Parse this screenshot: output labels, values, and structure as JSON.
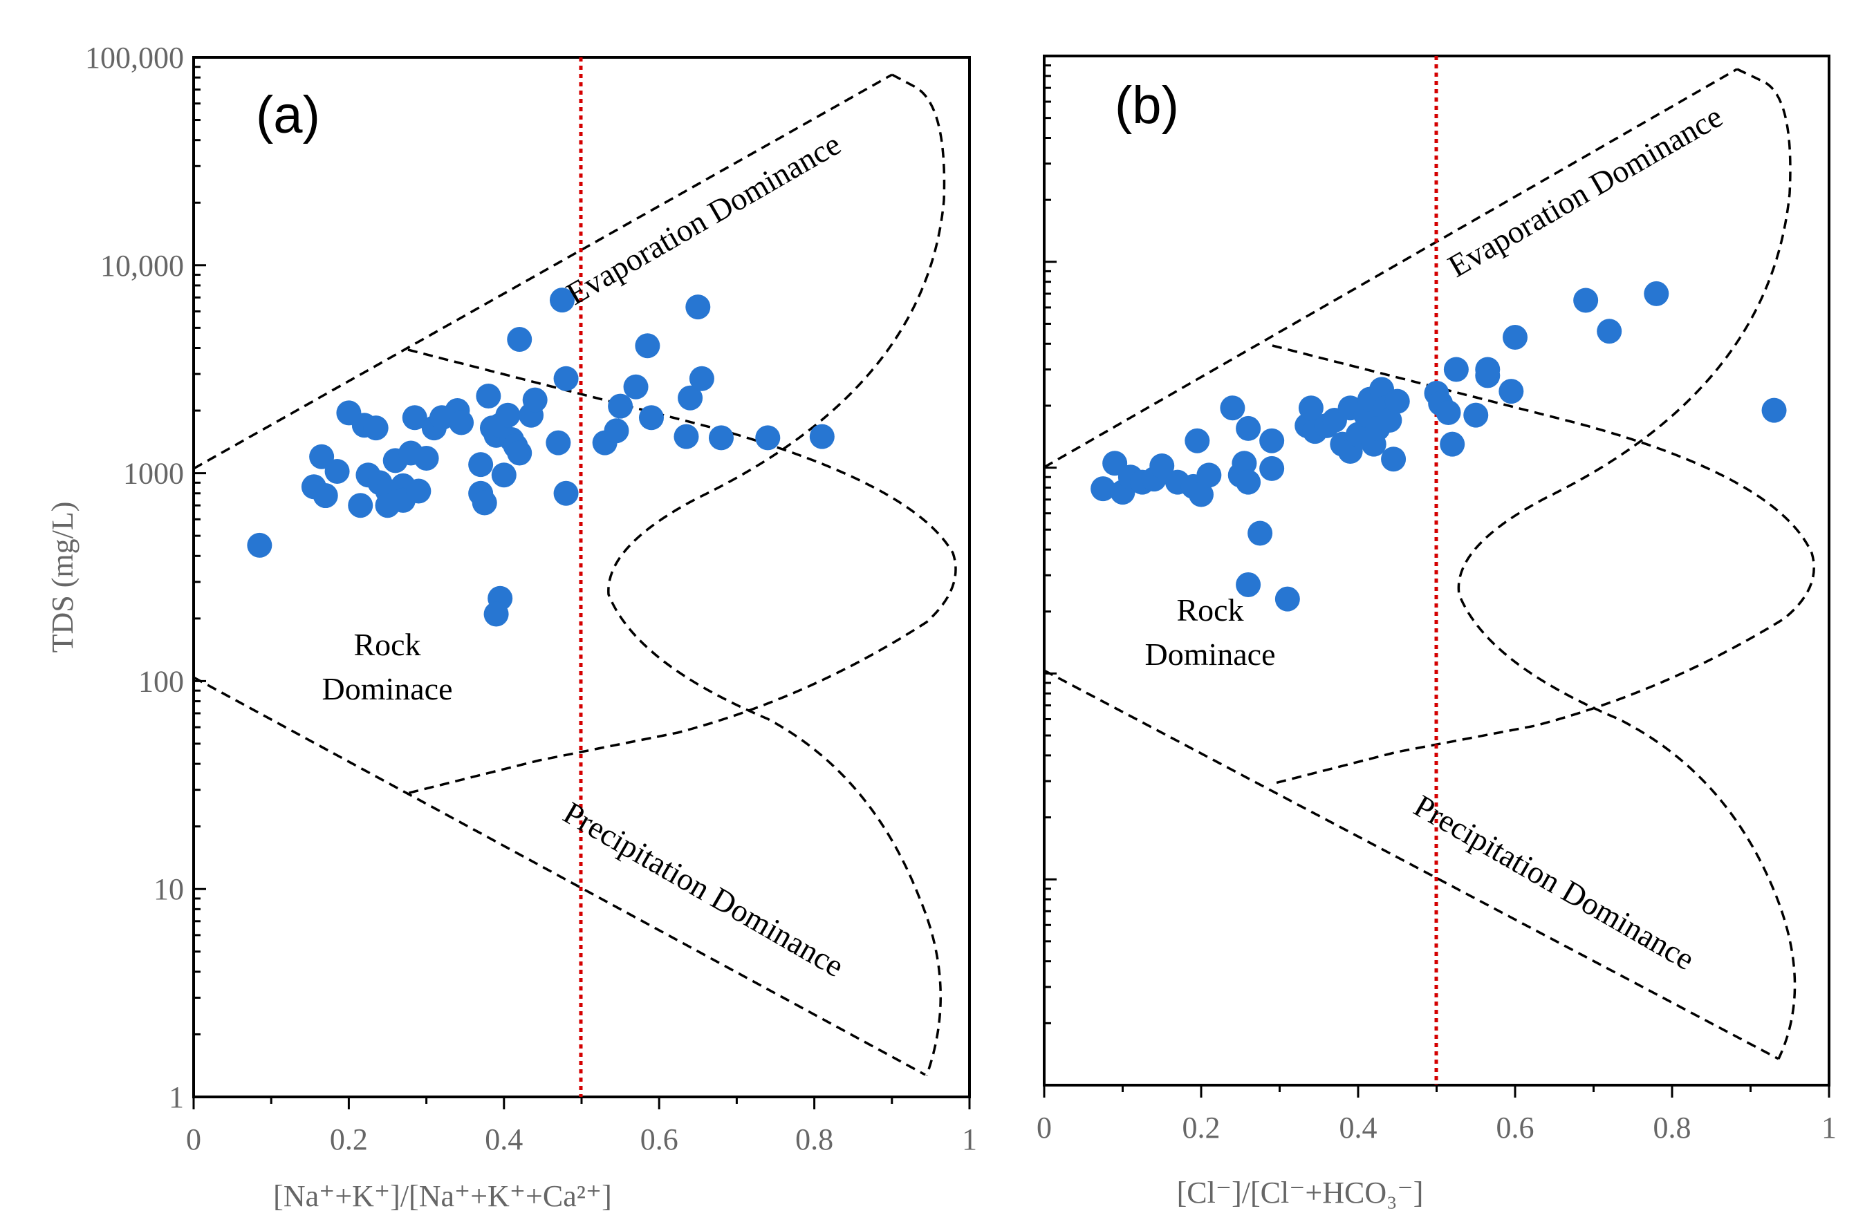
{
  "colors": {
    "point": "#2776d2",
    "threshold": "#d40000",
    "axis": "#000000",
    "tick_text": "#666666",
    "boundary": "#000000"
  },
  "chart_data": [
    {
      "type": "scatter",
      "panel_label": "(a)",
      "xlabel": "[Na⁺+K⁺]/[Na⁺+K⁺+Ca²⁺]",
      "ylabel": "TDS (mg/L)",
      "xlim": [
        0,
        1
      ],
      "ylim": [
        1,
        100000
      ],
      "yscale": "log",
      "x_ticks": [
        "0",
        "0.2",
        "0.4",
        "0.6",
        "0.8",
        "1"
      ],
      "y_ticks": [
        "1",
        "10",
        "100",
        "1000",
        "10,000",
        "100,000"
      ],
      "threshold_x": 0.5,
      "regions": [
        "Evaporation Dominance",
        "Rock",
        "Dominace",
        "Precipitation Dominance"
      ],
      "points": [
        [
          0.085,
          450
        ],
        [
          0.155,
          860
        ],
        [
          0.165,
          1200
        ],
        [
          0.17,
          780
        ],
        [
          0.185,
          1020
        ],
        [
          0.2,
          1950
        ],
        [
          0.215,
          700
        ],
        [
          0.22,
          1700
        ],
        [
          0.225,
          980
        ],
        [
          0.235,
          1650
        ],
        [
          0.24,
          900
        ],
        [
          0.25,
          820
        ],
        [
          0.25,
          700
        ],
        [
          0.26,
          1150
        ],
        [
          0.27,
          870
        ],
        [
          0.27,
          740
        ],
        [
          0.28,
          1250
        ],
        [
          0.285,
          1850
        ],
        [
          0.29,
          820
        ],
        [
          0.3,
          1180
        ],
        [
          0.31,
          1650
        ],
        [
          0.32,
          1850
        ],
        [
          0.34,
          2000
        ],
        [
          0.345,
          1750
        ],
        [
          0.37,
          1100
        ],
        [
          0.37,
          800
        ],
        [
          0.375,
          720
        ],
        [
          0.38,
          2350
        ],
        [
          0.385,
          1650
        ],
        [
          0.39,
          1520
        ],
        [
          0.395,
          1700
        ],
        [
          0.4,
          980
        ],
        [
          0.405,
          1900
        ],
        [
          0.41,
          1450
        ],
        [
          0.415,
          1350
        ],
        [
          0.42,
          1250
        ],
        [
          0.42,
          4400
        ],
        [
          0.435,
          1900
        ],
        [
          0.44,
          2250
        ],
        [
          0.47,
          1400
        ],
        [
          0.475,
          6800
        ],
        [
          0.48,
          2850
        ],
        [
          0.48,
          800
        ],
        [
          0.395,
          250
        ],
        [
          0.39,
          210
        ],
        [
          0.53,
          1400
        ],
        [
          0.545,
          1600
        ],
        [
          0.55,
          2100
        ],
        [
          0.57,
          2600
        ],
        [
          0.585,
          4100
        ],
        [
          0.59,
          1850
        ],
        [
          0.635,
          1500
        ],
        [
          0.64,
          2300
        ],
        [
          0.65,
          6300
        ],
        [
          0.655,
          2850
        ],
        [
          0.68,
          1480
        ],
        [
          0.74,
          1480
        ],
        [
          0.81,
          1500
        ]
      ]
    },
    {
      "type": "scatter",
      "panel_label": "(b)",
      "xlabel": "[Cl⁻]/[Cl⁻+HCO₃⁻]",
      "ylabel": "",
      "xlim": [
        0,
        1
      ],
      "ylim": [
        1,
        100000
      ],
      "yscale": "log",
      "x_ticks": [
        "0",
        "0.2",
        "0.4",
        "0.6",
        "0.8",
        "1"
      ],
      "y_ticks": [],
      "threshold_x": 0.5,
      "regions": [
        "Evaporation Dominance",
        "Rock",
        "Dominace",
        "Precipitation Dominance"
      ],
      "points": [
        [
          0.075,
          790
        ],
        [
          0.09,
          1050
        ],
        [
          0.1,
          760
        ],
        [
          0.11,
          900
        ],
        [
          0.125,
          850
        ],
        [
          0.14,
          880
        ],
        [
          0.15,
          1020
        ],
        [
          0.17,
          850
        ],
        [
          0.19,
          810
        ],
        [
          0.195,
          1350
        ],
        [
          0.2,
          740
        ],
        [
          0.21,
          920
        ],
        [
          0.24,
          1950
        ],
        [
          0.25,
          920
        ],
        [
          0.255,
          1050
        ],
        [
          0.26,
          850
        ],
        [
          0.26,
          1550
        ],
        [
          0.275,
          480
        ],
        [
          0.26,
          270
        ],
        [
          0.29,
          1350
        ],
        [
          0.29,
          990
        ],
        [
          0.31,
          230
        ],
        [
          0.335,
          1600
        ],
        [
          0.34,
          1950
        ],
        [
          0.345,
          1500
        ],
        [
          0.36,
          1600
        ],
        [
          0.37,
          1700
        ],
        [
          0.38,
          1300
        ],
        [
          0.39,
          1200
        ],
        [
          0.39,
          1950
        ],
        [
          0.4,
          1450
        ],
        [
          0.41,
          1800
        ],
        [
          0.415,
          2150
        ],
        [
          0.42,
          1300
        ],
        [
          0.425,
          1550
        ],
        [
          0.43,
          2400
        ],
        [
          0.435,
          1950
        ],
        [
          0.44,
          1700
        ],
        [
          0.445,
          1100
        ],
        [
          0.45,
          2100
        ],
        [
          0.5,
          2300
        ],
        [
          0.505,
          2050
        ],
        [
          0.515,
          1850
        ],
        [
          0.52,
          1300
        ],
        [
          0.525,
          3000
        ],
        [
          0.55,
          1800
        ],
        [
          0.565,
          2800
        ],
        [
          0.565,
          3000
        ],
        [
          0.595,
          2350
        ],
        [
          0.6,
          4300
        ],
        [
          0.69,
          6500
        ],
        [
          0.72,
          4600
        ],
        [
          0.78,
          7000
        ],
        [
          0.93,
          1900
        ]
      ]
    }
  ]
}
